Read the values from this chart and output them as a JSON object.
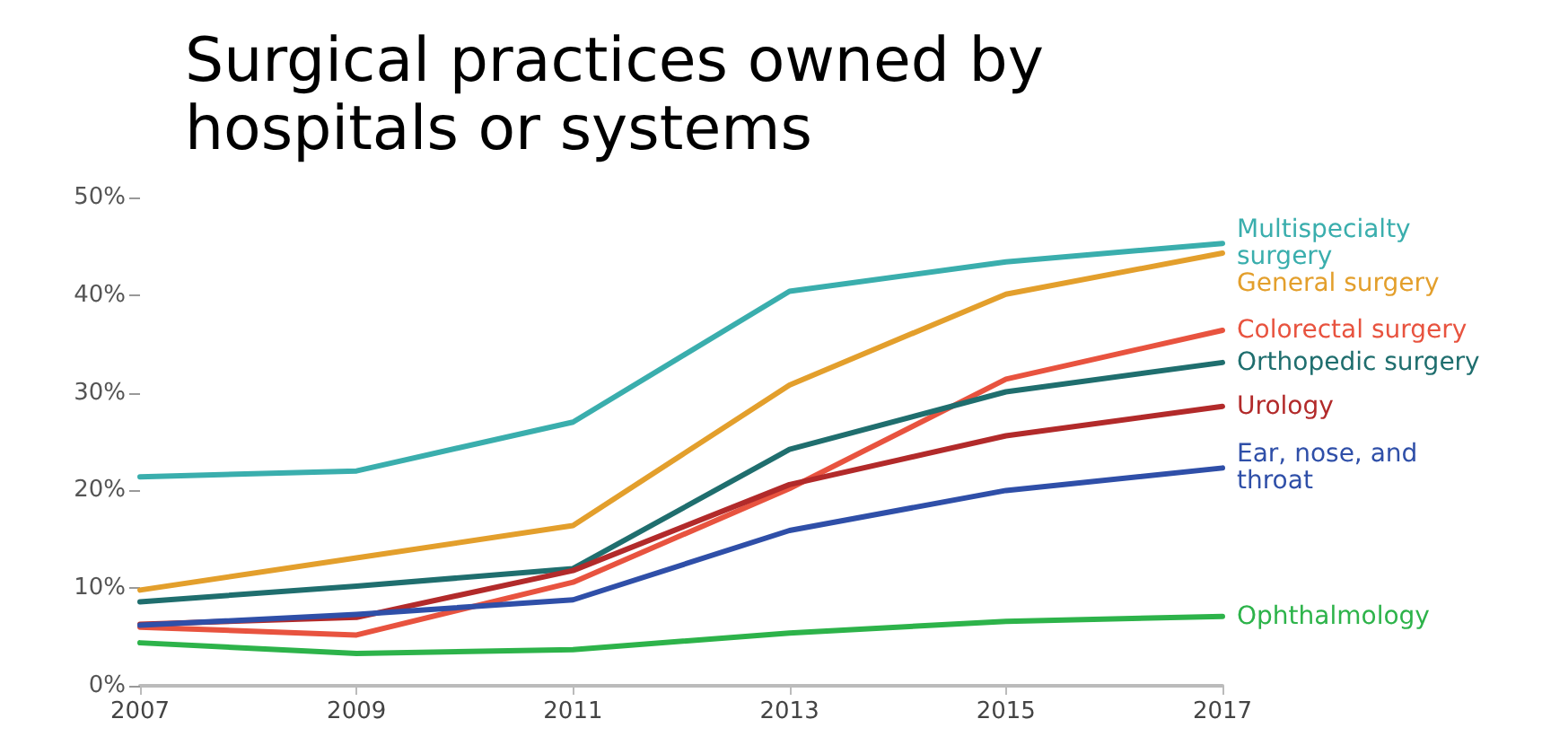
{
  "chart_data": {
    "type": "line",
    "title": "Surgical practices owned by hospitals or systems",
    "categories": [
      "2007",
      "2009",
      "2011",
      "2013",
      "2015",
      "2017"
    ],
    "ylim": [
      0,
      50
    ],
    "yticks": [
      {
        "value": 0,
        "label": "0%"
      },
      {
        "value": 10,
        "label": "10%"
      },
      {
        "value": 20,
        "label": "20%"
      },
      {
        "value": 30,
        "label": "30%"
      },
      {
        "value": 40,
        "label": "40%"
      },
      {
        "value": 50,
        "label": "50%"
      }
    ],
    "grid": false,
    "marker": "none",
    "line_style": "solid",
    "series": [
      {
        "name": "Multispecialty surgery",
        "color": "#3aaead",
        "values": [
          21.4,
          22,
          27,
          40.4,
          43.4,
          45.3
        ]
      },
      {
        "name": "General surgery",
        "color": "#e39f2c",
        "values": [
          9.8,
          13.1,
          16.4,
          30.8,
          40.1,
          44.3
        ]
      },
      {
        "name": "Colorectal surgery",
        "color": "#e8533f",
        "values": [
          6,
          5.2,
          10.6,
          20.2,
          31.4,
          36.4
        ]
      },
      {
        "name": "Orthopedic surgery",
        "color": "#1f6e6e",
        "values": [
          8.6,
          10.2,
          12,
          24.2,
          30.1,
          33.1
        ]
      },
      {
        "name": "Urology",
        "color": "#b22a2a",
        "values": [
          6.3,
          7,
          11.8,
          20.6,
          25.6,
          28.6
        ]
      },
      {
        "name": "Ear, nose, and throat",
        "color": "#2f4fa8",
        "values": [
          6.2,
          7.3,
          8.8,
          15.9,
          20,
          22.3
        ]
      },
      {
        "name": "Ophthalmology",
        "color": "#2db34a",
        "values": [
          4.4,
          3.3,
          3.7,
          5.4,
          6.6,
          7.1
        ]
      }
    ]
  }
}
